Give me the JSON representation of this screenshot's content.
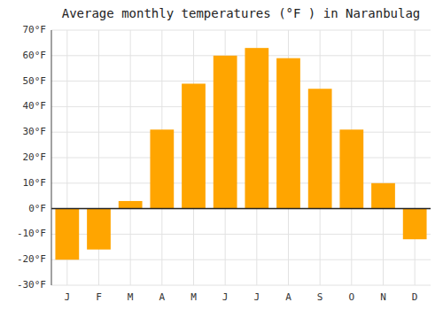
{
  "chart_data": {
    "type": "bar",
    "title": "Average monthly temperatures (°F ) in Naranbulag",
    "categories": [
      "J",
      "F",
      "M",
      "A",
      "M",
      "J",
      "J",
      "A",
      "S",
      "O",
      "N",
      "D"
    ],
    "values": [
      -20,
      -16,
      3,
      31,
      49,
      60,
      63,
      59,
      47,
      31,
      10,
      -12
    ],
    "color": "#FFA500",
    "ylim": [
      -30,
      70
    ],
    "yticks": [
      {
        "value": -30,
        "label": "-30°F"
      },
      {
        "value": -20,
        "label": "-20°F"
      },
      {
        "value": -10,
        "label": "-10°F"
      },
      {
        "value": 0,
        "label": "0°F"
      },
      {
        "value": 10,
        "label": "10°F"
      },
      {
        "value": 20,
        "label": "20°F"
      },
      {
        "value": 30,
        "label": "30°F"
      },
      {
        "value": 40,
        "label": "40°F"
      },
      {
        "value": 50,
        "label": "50°F"
      },
      {
        "value": 60,
        "label": "60°F"
      },
      {
        "value": 70,
        "label": "70°F"
      }
    ],
    "grid": true
  }
}
